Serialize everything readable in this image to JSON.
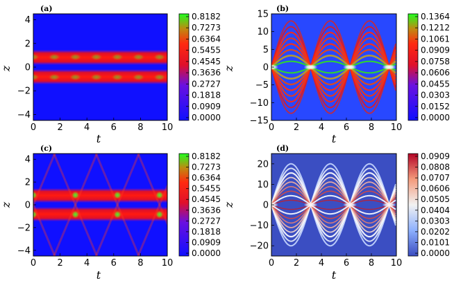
{
  "chart_data": [
    {
      "type": "heatmap",
      "panel_label": "(a)",
      "xlabel": "t",
      "ylabel": "z",
      "xlim": [
        0,
        10
      ],
      "ylim": [
        -4.5,
        4.5
      ],
      "x_ticks": [
        "0",
        "2",
        "4",
        "6",
        "8",
        "10"
      ],
      "y_ticks": [
        "4",
        "2",
        "0",
        "−2",
        "−4"
      ],
      "colormap": "blue-red-green",
      "colorbar_ticks": [
        "0.8182",
        "0.7273",
        "0.6364",
        "0.5455",
        "0.4545",
        "0.3636",
        "0.2727",
        "0.1818",
        "0.0909",
        "0.0000"
      ],
      "description_values": {
        "band_centers_z": [
          0.85,
          -0.85
        ],
        "period_t": 3.14
      }
    },
    {
      "type": "heatmap",
      "panel_label": "(b)",
      "xlabel": "t",
      "ylabel": "z",
      "xlim": [
        0,
        10
      ],
      "ylim": [
        -15,
        15
      ],
      "x_ticks": [
        "0",
        "2",
        "4",
        "6",
        "8",
        "10"
      ],
      "y_ticks": [
        "15",
        "10",
        "5",
        "0",
        "−5",
        "−10",
        "−15"
      ],
      "colormap": "blue-red-green",
      "colorbar_ticks": [
        "0.1364",
        "0.1212",
        "0.1061",
        "0.0909",
        "0.0758",
        "0.0606",
        "0.0455",
        "0.0303",
        "0.0152",
        "0.0000"
      ],
      "description_values": {
        "fringe_amplitude_z": 13,
        "period_t": 3.14
      }
    },
    {
      "type": "heatmap",
      "panel_label": "(c)",
      "xlabel": "t",
      "ylabel": "z",
      "xlim": [
        0,
        10
      ],
      "ylim": [
        -4.5,
        4.5
      ],
      "x_ticks": [
        "0",
        "2",
        "4",
        "6",
        "8",
        "10"
      ],
      "y_ticks": [
        "4",
        "2",
        "0",
        "−2",
        "−4"
      ],
      "colormap": "blue-red-green",
      "colorbar_ticks": [
        "0.8182",
        "0.7273",
        "0.6364",
        "0.5455",
        "0.4545",
        "0.3636",
        "0.2727",
        "0.1818",
        "0.0909",
        "0.0000"
      ],
      "description_values": {
        "band_centers_z": [
          0.85,
          -0.85
        ],
        "period_t": 3.14
      }
    },
    {
      "type": "heatmap",
      "panel_label": "(d)",
      "xlabel": "t",
      "ylabel": "z",
      "xlim": [
        0,
        10
      ],
      "ylim": [
        -25,
        25
      ],
      "x_ticks": [
        "0",
        "2",
        "4",
        "6",
        "8",
        "10"
      ],
      "y_ticks": [
        "20",
        "10",
        "0",
        "−10",
        "−20"
      ],
      "colormap": "blue-white-red",
      "colorbar_ticks": [
        "0.0909",
        "0.0808",
        "0.0707",
        "0.0606",
        "0.0505",
        "0.0404",
        "0.0303",
        "0.0202",
        "0.0101",
        "0.0000"
      ],
      "description_values": {
        "fringe_amplitude_z": 20,
        "period_t": 3.14
      }
    }
  ]
}
